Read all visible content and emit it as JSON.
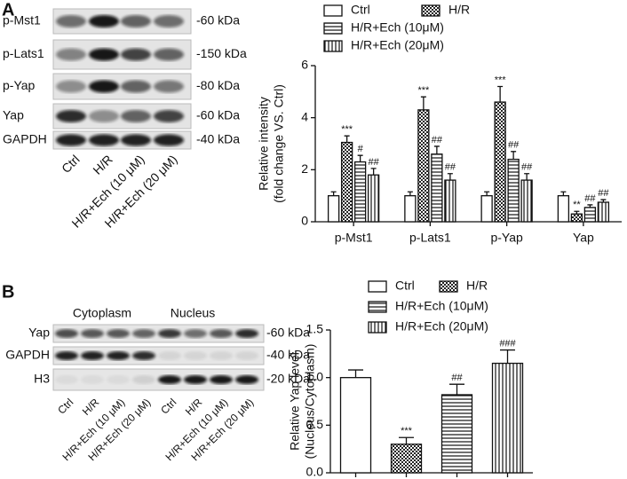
{
  "panels": [
    "A",
    "B"
  ],
  "blots": [
    {
      "rows": [
        "p-Mst1",
        "p-Lats1",
        "p-Yap",
        "Yap",
        "GAPDH"
      ],
      "sizes": [
        "-60 kDa",
        "-150 kDa",
        "-80 kDa",
        "-60 kDa",
        "-40 kDa"
      ],
      "lanes": [
        "Ctrl",
        "H/R",
        "H/R+Ech (10 μM)",
        "H/R+Ech (20 μM)"
      ]
    },
    {
      "groups": [
        "Cytoplasm",
        "Nucleus"
      ],
      "rows": [
        "Yap",
        "GAPDH",
        "H3"
      ],
      "sizes": [
        "-60 kDa",
        "-40 kDa",
        "-20 kDa"
      ],
      "lanes": [
        "Ctrl",
        "H/R",
        "H/R+Ech (10 μM)",
        "H/R+Ech (20 μM)",
        "Ctrl",
        "H/R",
        "H/R+Ech (10 μM)",
        "H/R+Ech (20 μM)"
      ]
    }
  ],
  "chart_data": [
    {
      "type": "bar",
      "ylabel": [
        "Relative intensity",
        "(fold change VS. Ctrl)"
      ],
      "categories": [
        "p-Mst1",
        "p-Lats1",
        "p-Yap",
        "Yap"
      ],
      "series": [
        {
          "name": "Ctrl",
          "pattern": "none",
          "values": [
            1,
            1,
            1,
            1
          ],
          "errors": [
            0.15,
            0.15,
            0.15,
            0.15
          ],
          "annotations": [
            null,
            null,
            null,
            null
          ]
        },
        {
          "name": "H/R",
          "pattern": "checker",
          "values": [
            3.05,
            4.3,
            4.6,
            0.3
          ],
          "errors": [
            0.25,
            0.5,
            0.6,
            0.1
          ],
          "annotations": [
            "***",
            "***",
            "***",
            "**"
          ]
        },
        {
          "name": "H/R+Ech (10μM)",
          "pattern": "horizontal",
          "values": [
            2.3,
            2.6,
            2.4,
            0.55
          ],
          "errors": [
            0.25,
            0.3,
            0.3,
            0.1
          ],
          "annotations": [
            "#",
            "##",
            "##",
            "##"
          ]
        },
        {
          "name": "H/R+Ech (20μM)",
          "pattern": "vertical",
          "values": [
            1.8,
            1.6,
            1.6,
            0.75
          ],
          "errors": [
            0.25,
            0.25,
            0.25,
            0.1
          ],
          "annotations": [
            "##",
            "##",
            "##",
            "##"
          ]
        }
      ],
      "ylim": [
        0,
        6
      ],
      "yticks": [
        0,
        2,
        4,
        6
      ]
    },
    {
      "type": "bar",
      "ylabel": [
        "Relative Yap level",
        "(Nucleus/Cytoplasm)"
      ],
      "categories": [
        null,
        null,
        null,
        null
      ],
      "legend": [
        "Ctrl",
        "H/R",
        "H/R+Ech (10μM)",
        "H/R+Ech (20μM)"
      ],
      "patterns": [
        "none",
        "checker",
        "horizontal",
        "vertical"
      ],
      "values": [
        1.0,
        0.3,
        0.82,
        1.15
      ],
      "errors": [
        0.08,
        0.07,
        0.11,
        0.14
      ],
      "annotations": [
        null,
        "***",
        "##",
        "###"
      ],
      "ylim": [
        0,
        1.5
      ],
      "yticks": [
        {
          "value": 0,
          "label": "0.0"
        },
        {
          "value": 0.5,
          "label": "0.5"
        },
        {
          "value": 1,
          "label": "1.0"
        },
        {
          "value": 1.5,
          "label": "1.5"
        }
      ]
    }
  ]
}
